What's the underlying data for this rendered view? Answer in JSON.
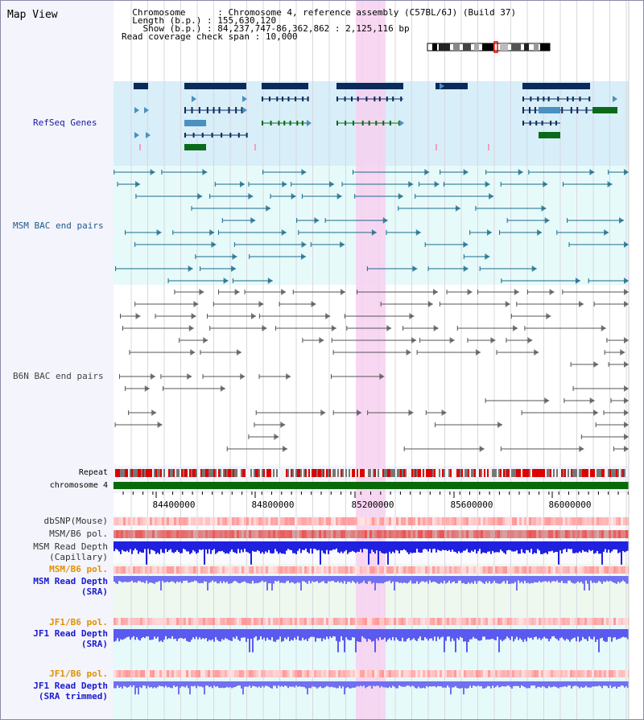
{
  "window": {
    "title": "Map View"
  },
  "info": {
    "chromosome_label": "Chromosome",
    "chromosome_value": "Chromosome 4, reference assembly (C57BL/6J) (Build 37)",
    "length_label": "Length (b.p.)",
    "length_value": "155,630,120",
    "show_label": "Show (b.p.)",
    "show_value": "84,237,747-86,362,862 : 2,125,116 bp",
    "span_label": "Read coverage check span",
    "span_value": "10,000"
  },
  "tracks": {
    "refseq": "RefSeq Genes",
    "msm_bac": "MSM BAC end pairs",
    "b6n_bac": "B6N BAC end pairs",
    "repeat": "Repeat",
    "chromosome": "chromosome 4",
    "dbsnp": "dbSNP(Mouse)",
    "msm_b6_pol_1": "MSM/B6 pol.",
    "msm_depth_cap_1": "MSM Read Depth",
    "msm_depth_cap_2": "(Capillary)",
    "msm_b6_pol_2": "MSM/B6 pol.",
    "msm_depth_sra_1": "MSM Read Depth",
    "msm_depth_sra_2": "(SRA)",
    "jf1_b6_pol_1": "JF1/B6 pol.",
    "jf1_depth_sra_1": "JF1 Read Depth",
    "jf1_depth_sra_2": "(SRA)",
    "jf1_b6_pol_2": "JF1/B6 pol.",
    "jf1_depth_trim_1": "JF1 Read Depth",
    "jf1_depth_trim_2": "(SRA trimmed)"
  },
  "axis": {
    "ticks": [
      "84400000",
      "84800000",
      "85200000",
      "85600000",
      "86000000"
    ]
  },
  "colors": {
    "highlight": "#f7d0f0",
    "refseq_bg": "#d8eef8",
    "msm_bac_bg": "#e6fafa",
    "gene_dark": "#0a2a5a",
    "gene_light": "#4a90c0",
    "gene_green": "#0a6a1a",
    "msm_bac": "#1a6a8a",
    "b6n_bac": "#555555",
    "chromosome": "#0a6a0a",
    "depth": "#2020e0",
    "depth_light": "#7070f0"
  }
}
